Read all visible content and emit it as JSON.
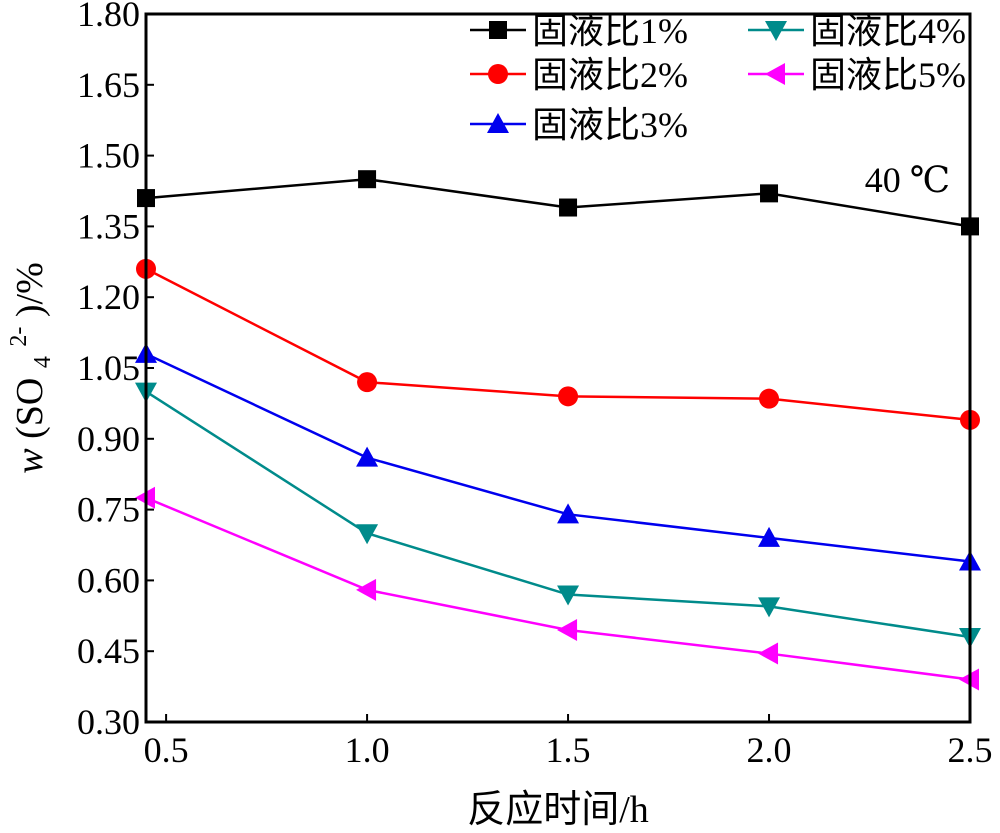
{
  "chart_data": {
    "type": "line",
    "title": "",
    "xlabel": "反应时间/h",
    "ylabel": {
      "prefix": "w",
      "open": "(SO",
      "sub": "4",
      "sup": "2-",
      "close": ")/%"
    },
    "annotation": "40 ℃",
    "xlim": [
      0.45,
      2.5
    ],
    "ylim": [
      0.3,
      1.8
    ],
    "xticks": [
      {
        "value": 0.5,
        "label": "0.5"
      },
      {
        "value": 1.0,
        "label": "1.0"
      },
      {
        "value": 1.5,
        "label": "1.5"
      },
      {
        "value": 2.0,
        "label": "2.0"
      },
      {
        "value": 2.5,
        "label": "2.5"
      }
    ],
    "yticks": [
      {
        "value": 0.3,
        "label": "0.30"
      },
      {
        "value": 0.45,
        "label": "0.45"
      },
      {
        "value": 0.6,
        "label": "0.60"
      },
      {
        "value": 0.75,
        "label": "0.75"
      },
      {
        "value": 0.9,
        "label": "0.90"
      },
      {
        "value": 1.05,
        "label": "1.05"
      },
      {
        "value": 1.2,
        "label": "1.20"
      },
      {
        "value": 1.35,
        "label": "1.35"
      },
      {
        "value": 1.5,
        "label": "1.50"
      },
      {
        "value": 1.65,
        "label": "1.65"
      },
      {
        "value": 1.8,
        "label": "1.80"
      }
    ],
    "x": [
      0.45,
      1.0,
      1.5,
      2.0,
      2.5
    ],
    "grid": false,
    "legend_position": "top-right",
    "series": [
      {
        "name": "固液比1%",
        "color": "#000000",
        "marker": "square",
        "values": [
          1.41,
          1.45,
          1.39,
          1.42,
          1.35
        ]
      },
      {
        "name": "固液比2%",
        "color": "#ff0000",
        "marker": "circle",
        "values": [
          1.26,
          1.02,
          0.99,
          0.985,
          0.94
        ]
      },
      {
        "name": "固液比3%",
        "color": "#0000ee",
        "marker": "triangle-up",
        "values": [
          1.08,
          0.86,
          0.74,
          0.69,
          0.64
        ]
      },
      {
        "name": "固液比4%",
        "color": "#008b8b",
        "marker": "triangle-down",
        "values": [
          1.0,
          0.7,
          0.57,
          0.545,
          0.48
        ]
      },
      {
        "name": "固液比5%",
        "color": "#ff00ff",
        "marker": "triangle-left",
        "values": [
          0.775,
          0.58,
          0.495,
          0.445,
          0.39
        ]
      }
    ]
  }
}
